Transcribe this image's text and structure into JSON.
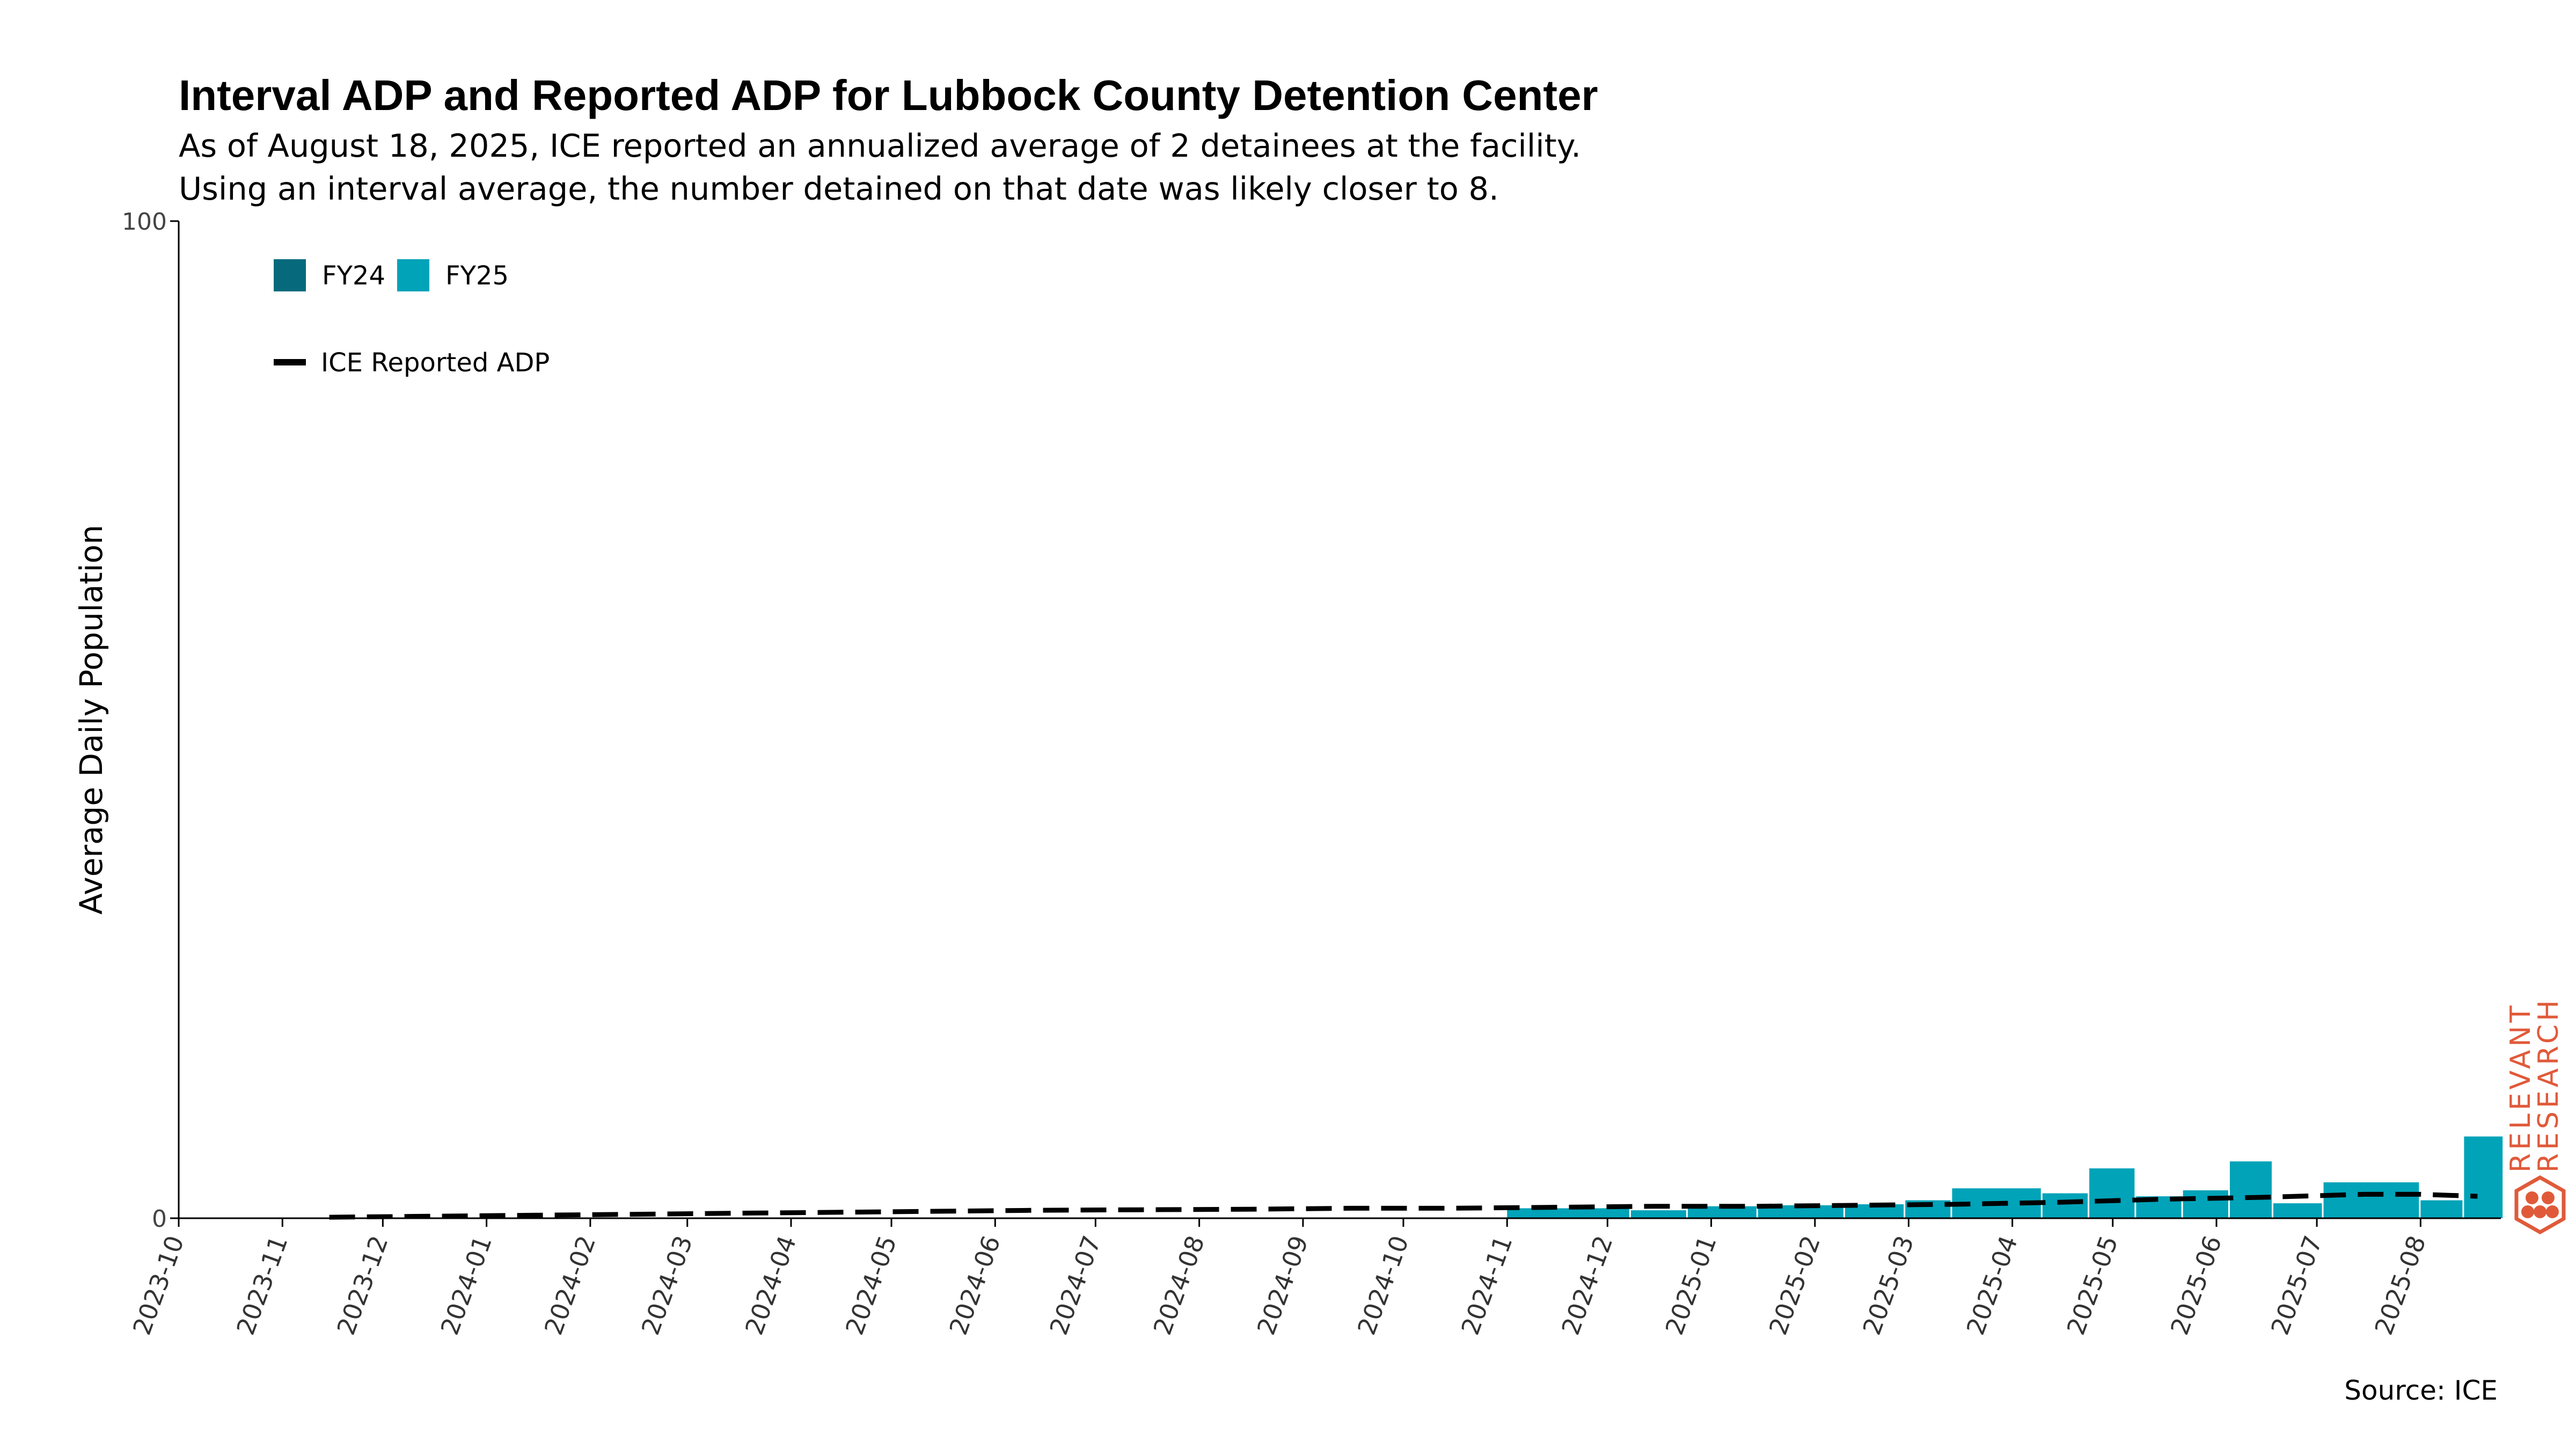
{
  "title": "Interval ADP and Reported ADP for Lubbock County Detention Center",
  "subtitle": [
    "As of August 18, 2025, ICE reported an annualized average of 2 detainees at the facility.",
    "Using an interval average, the number detained on that date was likely closer to 8."
  ],
  "source": "Source: ICE",
  "brand": {
    "line1": "RELEVANT",
    "line2": "RESEARCH",
    "color": "#e05a3a"
  },
  "colors": {
    "fy24": "#066a7c",
    "fy25": "#00a3b8",
    "reported_line": "#000000",
    "axis": "#000000"
  },
  "chart_data": {
    "type": "bar",
    "ylabel": "Average Daily Population",
    "xlabel": "",
    "ylim": [
      0,
      100
    ],
    "yticks": [
      0,
      100
    ],
    "xlim": [
      "2023-10-01",
      "2025-08-25"
    ],
    "xtick_labels": [
      "2023-10",
      "2023-11",
      "2023-12",
      "2024-01",
      "2024-02",
      "2024-03",
      "2024-04",
      "2024-05",
      "2024-06",
      "2024-07",
      "2024-08",
      "2024-09",
      "2024-10",
      "2024-11",
      "2024-12",
      "2025-01",
      "2025-02",
      "2025-03",
      "2025-04",
      "2025-05",
      "2025-06",
      "2025-07",
      "2025-08"
    ],
    "legend": {
      "placement": "top-left",
      "bars": [
        {
          "name": "FY24",
          "color": "#066a7c"
        },
        {
          "name": "FY25",
          "color": "#00a3b8"
        }
      ],
      "line": "ICE Reported ADP"
    },
    "series": [
      {
        "name": "FY25",
        "kind": "bar",
        "color": "#00a3b8",
        "points": [
          {
            "start": "2024-11-01",
            "end": "2024-12-08",
            "value": 1.0
          },
          {
            "start": "2024-12-08",
            "end": "2024-12-25",
            "value": 0.8
          },
          {
            "start": "2024-12-25",
            "end": "2025-01-15",
            "value": 1.2
          },
          {
            "start": "2025-01-15",
            "end": "2025-02-10",
            "value": 1.3
          },
          {
            "start": "2025-02-10",
            "end": "2025-02-28",
            "value": 1.4
          },
          {
            "start": "2025-02-28",
            "end": "2025-03-14",
            "value": 1.8
          },
          {
            "start": "2025-03-14",
            "end": "2025-04-10",
            "value": 3.0
          },
          {
            "start": "2025-04-10",
            "end": "2025-04-24",
            "value": 2.5
          },
          {
            "start": "2025-04-24",
            "end": "2025-05-08",
            "value": 5.0
          },
          {
            "start": "2025-05-08",
            "end": "2025-05-22",
            "value": 2.2
          },
          {
            "start": "2025-05-22",
            "end": "2025-06-05",
            "value": 2.8
          },
          {
            "start": "2025-06-05",
            "end": "2025-06-18",
            "value": 5.7
          },
          {
            "start": "2025-06-18",
            "end": "2025-07-03",
            "value": 1.5
          },
          {
            "start": "2025-07-03",
            "end": "2025-08-01",
            "value": 3.6
          },
          {
            "start": "2025-08-01",
            "end": "2025-08-14",
            "value": 1.8
          },
          {
            "start": "2025-08-14",
            "end": "2025-08-26",
            "value": 8.2
          }
        ]
      },
      {
        "name": "ICE Reported ADP",
        "kind": "line",
        "style": "dashed",
        "color": "#000000",
        "x": [
          "2023-11-15",
          "2023-12-15",
          "2024-01-15",
          "2024-02-15",
          "2024-03-15",
          "2024-04-15",
          "2024-05-15",
          "2024-06-15",
          "2024-07-15",
          "2024-08-15",
          "2024-09-15",
          "2024-10-15",
          "2024-11-15",
          "2024-12-15",
          "2025-01-15",
          "2025-02-15",
          "2025-03-15",
          "2025-04-15",
          "2025-05-15",
          "2025-06-15",
          "2025-07-15",
          "2025-08-01",
          "2025-08-18"
        ],
        "y": [
          0.1,
          0.2,
          0.3,
          0.4,
          0.5,
          0.6,
          0.7,
          0.8,
          0.85,
          0.9,
          1.0,
          1.0,
          1.1,
          1.2,
          1.2,
          1.3,
          1.4,
          1.6,
          1.9,
          2.1,
          2.4,
          2.4,
          2.2
        ]
      }
    ]
  }
}
